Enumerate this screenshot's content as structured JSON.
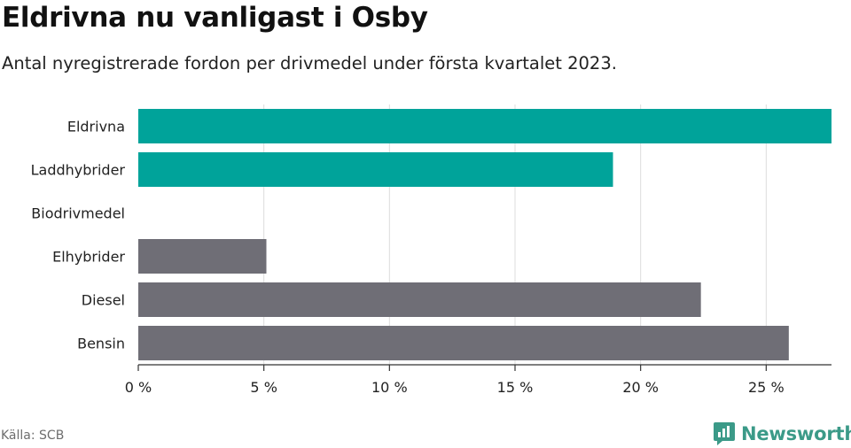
{
  "header": {
    "title": "Eldrivna nu vanligast i Osby",
    "subtitle": "Antal nyregistrerade fordon per drivmedel under första kvartalet 2023."
  },
  "footer": {
    "source": "Källa: SCB",
    "brand": "Newsworthy"
  },
  "colors": {
    "highlight": "#00a39a",
    "muted": "#6f6e76",
    "grid": "#dcdcdc",
    "brand": "#3b9a88"
  },
  "icons": {
    "brand": "newsworthy-logo-icon"
  },
  "chart_data": {
    "type": "bar",
    "orientation": "horizontal",
    "title": "Eldrivna nu vanligast i Osby",
    "subtitle": "Antal nyregistrerade fordon per drivmedel under första kvartalet 2023.",
    "categories": [
      "Eldrivna",
      "Laddhybrider",
      "Biodrivmedel",
      "Elhybrider",
      "Diesel",
      "Bensin"
    ],
    "values": [
      27.6,
      18.9,
      0,
      5.1,
      22.4,
      25.9
    ],
    "bar_colors": [
      "#00a39a",
      "#00a39a",
      "#00a39a",
      "#6f6e76",
      "#6f6e76",
      "#6f6e76"
    ],
    "xticks": [
      0,
      5,
      10,
      15,
      20,
      25
    ],
    "xtick_labels": [
      "0 %",
      "5 %",
      "10 %",
      "15 %",
      "20 %",
      "25 %"
    ],
    "xlim": [
      0,
      27.6
    ],
    "xlabel": "",
    "ylabel": "",
    "grid": true
  }
}
